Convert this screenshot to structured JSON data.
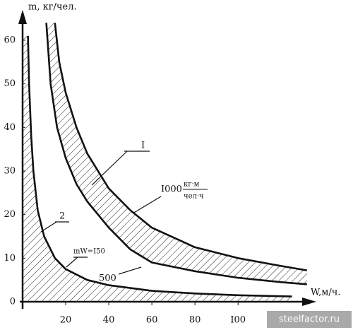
{
  "chart_data": {
    "type": "line",
    "y_label": "m, кг/чел.",
    "x_label": "W,м/ч.",
    "xlim": [
      0,
      135
    ],
    "ylim": [
      0,
      66
    ],
    "xticks": [
      20,
      40,
      60,
      80,
      {
        "value": 100,
        "label": "I00"
      }
    ],
    "yticks": [
      0,
      10,
      20,
      30,
      40,
      50,
      60
    ],
    "hatch": true,
    "series": [
      {
        "color": "#111111",
        "x": [
          2.5,
          3,
          4,
          5,
          7,
          10,
          15,
          20,
          30,
          40,
          60,
          80,
          100,
          125
        ],
        "values": [
          61,
          50,
          38,
          30,
          21,
          15,
          10,
          7.5,
          5,
          3.8,
          2.5,
          1.9,
          1.5,
          1.2
        ]
      },
      {
        "color": "#111111",
        "x": [
          11,
          13,
          16,
          20,
          25,
          30,
          40,
          50,
          60,
          80,
          100,
          120,
          132
        ],
        "values": [
          64,
          50,
          40,
          33,
          27,
          23,
          17,
          12,
          9,
          7,
          5.5,
          4.5,
          4
        ]
      },
      {
        "color": "#111111",
        "x": [
          15,
          17,
          20,
          25,
          30,
          40,
          50,
          60,
          80,
          100,
          120,
          132
        ],
        "values": [
          64,
          55,
          48,
          40,
          34,
          26,
          21,
          17,
          12.5,
          10,
          8.2,
          7.2
        ]
      }
    ],
    "annotations": [
      "I",
      "2",
      "I000",
      "кг·м",
      "чел·ч",
      "mW=I50",
      "500"
    ],
    "watermark": "steelfactor.ru"
  }
}
